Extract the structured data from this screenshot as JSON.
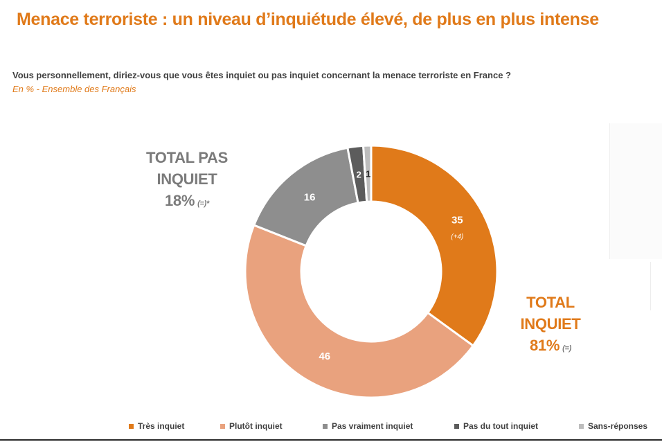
{
  "title": "Menace terroriste : un niveau d’inquiétude élevé, de plus en plus intense",
  "question": "Vous personnellement, diriez-vous que vous êtes inquiet ou pas inquiet concernant la menace terroriste en France ?",
  "base": "En % - Ensemble des Français",
  "totals": {
    "not_worried": {
      "line1": "TOTAL PAS",
      "line2": "INQUIET",
      "value": "18%",
      "evolution": "(=)*"
    },
    "worried": {
      "line1": "TOTAL",
      "line2": "INQUIET",
      "value": "81%",
      "evolution": "(=)"
    }
  },
  "chart_data": {
    "type": "pie",
    "subtype": "donut",
    "start_angle_deg": 0,
    "direction": "clockwise",
    "series": [
      {
        "name": "Très inquiet",
        "value": 35,
        "label": "35",
        "evolution": "(+4)",
        "color": "#e07a1a"
      },
      {
        "name": "Plutôt inquiet",
        "value": 46,
        "label": "46",
        "evolution": "",
        "color": "#e9a27e"
      },
      {
        "name": "Pas vraiment inquiet",
        "value": 16,
        "label": "16",
        "evolution": "",
        "color": "#8e8e8e"
      },
      {
        "name": "Pas du tout inquiet",
        "value": 2,
        "label": "2",
        "evolution": "",
        "color": "#5c5c5c"
      },
      {
        "name": "Sans-réponses",
        "value": 1,
        "label": "1",
        "evolution": "",
        "color": "#bdbdbd"
      }
    ],
    "legend_position": "bottom"
  }
}
